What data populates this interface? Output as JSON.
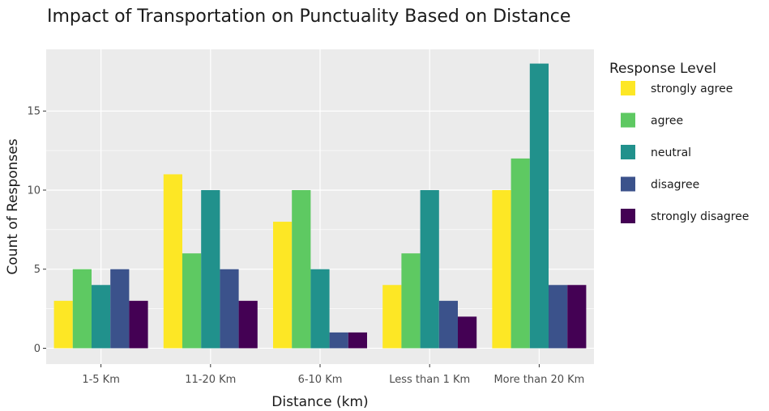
{
  "chart_data": {
    "type": "bar",
    "title": "Impact of Transportation on Punctuality Based on Distance",
    "xlabel": "Distance (km)",
    "ylabel": "Count of Responses",
    "categories": [
      "1-5 Km",
      "11-20 Km",
      "6-10 Km",
      "Less than 1 Km",
      "More than 20 Km"
    ],
    "ylim": [
      -1,
      18.9
    ],
    "yticks": [
      0,
      5,
      10,
      15
    ],
    "ytick_labels": [
      "0",
      "5",
      "10",
      "15"
    ],
    "grid": true,
    "legend_title": "Response Level",
    "legend_position": "right",
    "series": [
      {
        "name": "strongly agree",
        "color": "#fde725",
        "values": [
          3,
          11,
          8,
          4,
          10
        ]
      },
      {
        "name": "agree",
        "color": "#5ec962",
        "values": [
          5,
          6,
          10,
          6,
          12
        ]
      },
      {
        "name": "neutral",
        "color": "#21918c",
        "values": [
          4,
          10,
          5,
          10,
          18
        ]
      },
      {
        "name": "disagree",
        "color": "#3b528b",
        "values": [
          5,
          5,
          1,
          3,
          4
        ]
      },
      {
        "name": "strongly disagree",
        "color": "#440154",
        "values": [
          3,
          3,
          1,
          2,
          4
        ]
      }
    ],
    "panel_color": "#ebebeb",
    "grid_color": "#ffffff"
  }
}
